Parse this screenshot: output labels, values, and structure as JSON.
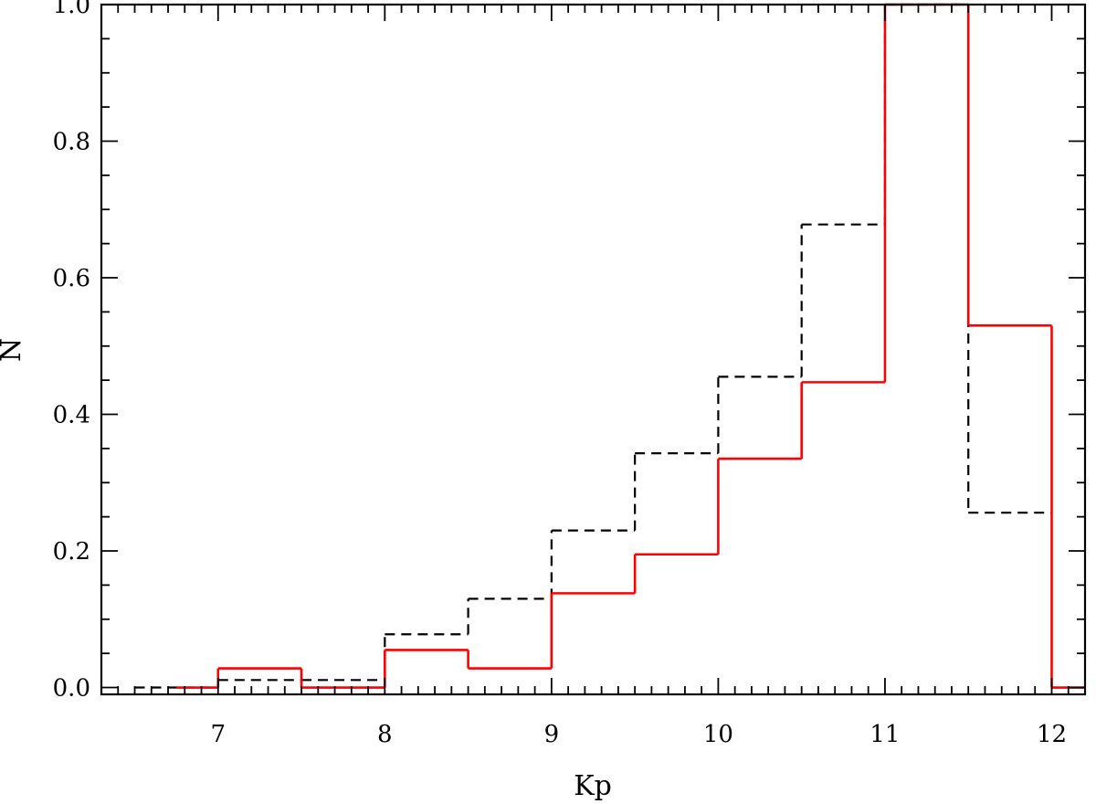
{
  "chart_data": {
    "type": "histogram",
    "title": "",
    "xlabel": "Kp",
    "ylabel": "N",
    "xlim": [
      6.3,
      12.2
    ],
    "ylim": [
      -0.01,
      1.0
    ],
    "x_ticks": [
      {
        "value": 7,
        "label": "7"
      },
      {
        "value": 8,
        "label": "8"
      },
      {
        "value": 9,
        "label": "9"
      },
      {
        "value": 10,
        "label": "10"
      },
      {
        "value": 11,
        "label": "11"
      },
      {
        "value": 12,
        "label": "12"
      }
    ],
    "y_ticks": [
      {
        "value": 0.0,
        "label": "0.0"
      },
      {
        "value": 0.2,
        "label": "0.2"
      },
      {
        "value": 0.4,
        "label": "0.4"
      },
      {
        "value": 0.6,
        "label": "0.6"
      },
      {
        "value": 0.8,
        "label": "0.8"
      },
      {
        "value": 1.0,
        "label": "1.0"
      }
    ],
    "series": [
      {
        "style": "dashed",
        "color": "#000000",
        "bin_edges": [
          6.5,
          7.0,
          7.5,
          8.0,
          8.5,
          9.0,
          9.5,
          10.0,
          10.5,
          11.0,
          11.5,
          12.0
        ],
        "values": [
          0.0,
          0.011,
          0.011,
          0.078,
          0.13,
          0.23,
          0.343,
          0.455,
          0.678,
          1.0,
          0.256
        ]
      },
      {
        "style": "solid",
        "color": "#ff0000",
        "bin_edges": [
          6.75,
          7.0,
          7.5,
          8.0,
          8.5,
          9.0,
          9.5,
          10.0,
          10.5,
          11.0,
          11.5,
          12.0,
          12.2
        ],
        "values": [
          0.0,
          0.028,
          0.0,
          0.055,
          0.028,
          0.138,
          0.195,
          0.335,
          0.447,
          1.0,
          0.53,
          0.0
        ]
      }
    ]
  }
}
